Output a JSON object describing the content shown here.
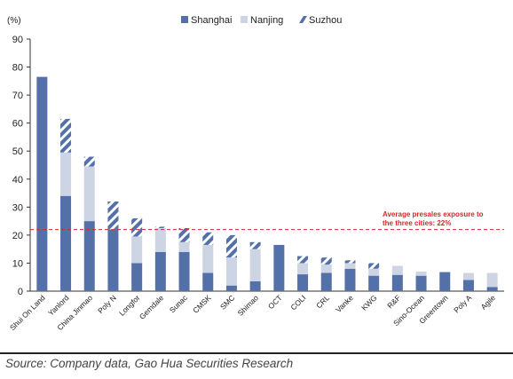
{
  "chart_data": {
    "type": "bar",
    "stacked": true,
    "ylabel": "(%)",
    "ylim": [
      0,
      90
    ],
    "yticks": [
      0,
      10,
      20,
      30,
      40,
      50,
      60,
      70,
      80,
      90
    ],
    "grid": false,
    "legend_position": "top",
    "categories": [
      "Shui On Land",
      "Yanlord",
      "China Jinmao",
      "Poly N",
      "Longfor",
      "Gemdale",
      "Sunac",
      "CMSK",
      "SMC",
      "Shimao",
      "OCT",
      "COLI",
      "CRL",
      "Vanke",
      "KWG",
      "R&F",
      "Sino-Ocean",
      "Greentown",
      "Poly A",
      "Agile"
    ],
    "series": [
      {
        "name": "Shanghai",
        "color": "#5470a8",
        "pattern": "solid",
        "values": [
          76.5,
          34,
          25,
          22,
          10,
          14,
          14,
          6.5,
          2,
          3.5,
          16.5,
          6,
          6.5,
          8,
          5.5,
          5.8,
          5.5,
          6.8,
          4,
          1.5
        ]
      },
      {
        "name": "Nanjing",
        "color": "#cdd5e4",
        "pattern": "solid",
        "values": [
          0,
          15.5,
          19.5,
          0,
          9.5,
          8.5,
          3.5,
          10,
          10,
          11.5,
          0,
          4,
          3,
          2,
          2.5,
          3.2,
          1.5,
          0,
          2.5,
          5
        ]
      },
      {
        "name": "Suzhou",
        "color": "#5470a8",
        "pattern": "hatched",
        "values": [
          0,
          12,
          3.5,
          10,
          6.5,
          0.5,
          5,
          4.5,
          8,
          2.5,
          0,
          2.5,
          2.5,
          1,
          2,
          0,
          0,
          0,
          0,
          0
        ]
      }
    ],
    "reference_line": {
      "value": 22,
      "color": "#d9262a",
      "label": "Average presales exposure to the three cities: 22%"
    }
  },
  "source": "Source: Company data, Gao Hua Securities Research"
}
